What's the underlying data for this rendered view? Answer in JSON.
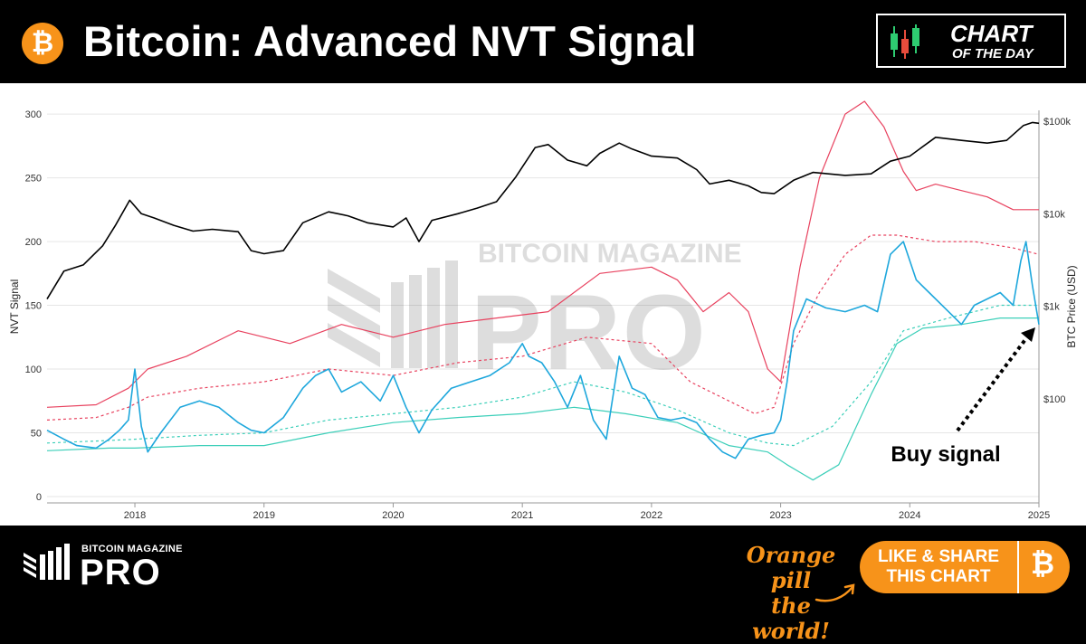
{
  "header": {
    "btc_symbol": "₿",
    "title": "Bitcoin: Advanced NVT Signal",
    "badge_line1": "CHART",
    "badge_line2": "OF THE DAY"
  },
  "watermark": {
    "line1": "BITCOIN MAGAZINE",
    "line2": "PRO"
  },
  "annotation": "Buy signal",
  "footer": {
    "brand_small": "BITCOIN MAGAZINE",
    "brand_big": "PRO",
    "slogan_line1": "Orange pill",
    "slogan_line2": "the world!",
    "share_line1": "LIKE & SHARE",
    "share_line2": "THIS CHART",
    "share_symbol": "₿"
  },
  "colors": {
    "brand_orange": "#f7931a",
    "nvt": "#1ea7dc",
    "price": "#000000",
    "upper_band": "#e8425f",
    "lower_band": "#3ccfb9"
  },
  "chart_data": {
    "type": "line",
    "ylabel": "NVT Signal",
    "y2label": "BTC Price (USD)",
    "ylim": [
      0,
      310
    ],
    "y_ticks": [
      0,
      50,
      100,
      150,
      200,
      250,
      300
    ],
    "y2_log": true,
    "y2_ticks": [
      100,
      1000,
      10000,
      100000
    ],
    "y2_tick_labels": [
      "$100",
      "$1k",
      "$10k",
      "$100k"
    ],
    "xlim": [
      2017.32,
      2025.0
    ],
    "x_ticks": [
      2018,
      2019,
      2020,
      2021,
      2022,
      2023,
      2024,
      2025
    ],
    "x_tick_labels": [
      "2018",
      "2019",
      "2020",
      "2021",
      "2022",
      "2023",
      "2024",
      "2025"
    ],
    "grid": true,
    "series": [
      {
        "axis": "right",
        "color": "#000000",
        "x": [
          2017.32,
          2017.45,
          2017.6,
          2017.75,
          2017.85,
          2017.96,
          2018.05,
          2018.15,
          2018.3,
          2018.45,
          2018.6,
          2018.8,
          2018.9,
          2019.0,
          2019.15,
          2019.3,
          2019.5,
          2019.65,
          2019.8,
          2020.0,
          2020.1,
          2020.2,
          2020.3,
          2020.5,
          2020.65,
          2020.8,
          2020.95,
          2021.0,
          2021.1,
          2021.2,
          2021.35,
          2021.5,
          2021.6,
          2021.75,
          2021.85,
          2022.0,
          2022.2,
          2022.35,
          2022.45,
          2022.6,
          2022.75,
          2022.85,
          2022.95,
          2023.1,
          2023.25,
          2023.5,
          2023.7,
          2023.85,
          2024.0,
          2024.2,
          2024.4,
          2024.6,
          2024.75,
          2024.88,
          2024.95,
          2025.0
        ],
        "y": [
          1200,
          2400,
          2800,
          4500,
          7500,
          14000,
          10000,
          9000,
          7500,
          6500,
          6800,
          6400,
          4000,
          3700,
          4000,
          8000,
          10500,
          9500,
          8000,
          7200,
          9000,
          5000,
          8500,
          10000,
          11500,
          13500,
          25000,
          32000,
          52000,
          56000,
          38000,
          33000,
          45000,
          58000,
          50000,
          42000,
          40000,
          30000,
          21000,
          23000,
          20000,
          17000,
          16500,
          23000,
          28000,
          26000,
          27000,
          37000,
          42000,
          67000,
          62000,
          58000,
          62000,
          90000,
          97000,
          95000
        ]
      },
      {
        "axis": "left",
        "color": "#1ea7dc",
        "x": [
          2017.32,
          2017.45,
          2017.55,
          2017.7,
          2017.8,
          2017.88,
          2017.95,
          2018.0,
          2018.05,
          2018.1,
          2018.2,
          2018.35,
          2018.5,
          2018.65,
          2018.8,
          2018.9,
          2019.0,
          2019.15,
          2019.3,
          2019.4,
          2019.5,
          2019.6,
          2019.75,
          2019.9,
          2020.0,
          2020.1,
          2020.2,
          2020.3,
          2020.45,
          2020.6,
          2020.75,
          2020.9,
          2021.0,
          2021.05,
          2021.15,
          2021.25,
          2021.35,
          2021.45,
          2021.55,
          2021.65,
          2021.75,
          2021.85,
          2021.95,
          2022.05,
          2022.15,
          2022.25,
          2022.35,
          2022.45,
          2022.55,
          2022.65,
          2022.75,
          2022.85,
          2022.95,
          2023.0,
          2023.05,
          2023.1,
          2023.2,
          2023.35,
          2023.5,
          2023.65,
          2023.75,
          2023.85,
          2023.95,
          2024.05,
          2024.15,
          2024.3,
          2024.4,
          2024.5,
          2024.6,
          2024.7,
          2024.8,
          2024.86,
          2024.9,
          2024.95,
          2025.0
        ],
        "y": [
          52,
          45,
          40,
          38,
          45,
          52,
          60,
          100,
          55,
          35,
          50,
          70,
          75,
          70,
          58,
          52,
          50,
          62,
          85,
          95,
          100,
          82,
          90,
          75,
          95,
          70,
          50,
          68,
          85,
          90,
          95,
          105,
          120,
          110,
          105,
          90,
          70,
          95,
          60,
          45,
          110,
          85,
          80,
          62,
          60,
          62,
          58,
          45,
          35,
          30,
          45,
          48,
          50,
          60,
          90,
          130,
          155,
          148,
          145,
          150,
          145,
          190,
          200,
          170,
          160,
          145,
          135,
          150,
          155,
          160,
          150,
          185,
          200,
          165,
          135
        ]
      },
      {
        "axis": "left",
        "color": "#e8425f",
        "dash": false,
        "x": [
          2017.32,
          2017.7,
          2017.95,
          2018.1,
          2018.4,
          2018.8,
          2019.2,
          2019.6,
          2020.0,
          2020.4,
          2020.8,
          2021.2,
          2021.6,
          2022.0,
          2022.2,
          2022.4,
          2022.6,
          2022.75,
          2022.9,
          2023.0,
          2023.15,
          2023.3,
          2023.5,
          2023.65,
          2023.8,
          2023.95,
          2024.05,
          2024.2,
          2024.4,
          2024.6,
          2024.8,
          2024.95,
          2025.0
        ],
        "y": [
          70,
          72,
          85,
          100,
          110,
          130,
          120,
          135,
          125,
          135,
          140,
          145,
          175,
          180,
          170,
          145,
          160,
          145,
          100,
          90,
          180,
          250,
          300,
          310,
          290,
          255,
          240,
          245,
          240,
          235,
          225,
          225,
          225
        ]
      },
      {
        "axis": "left",
        "color": "#e8425f",
        "dash": true,
        "x": [
          2017.32,
          2017.7,
          2017.95,
          2018.1,
          2018.5,
          2019.0,
          2019.5,
          2020.0,
          2020.5,
          2021.0,
          2021.5,
          2022.0,
          2022.3,
          2022.6,
          2022.8,
          2022.95,
          2023.1,
          2023.3,
          2023.5,
          2023.7,
          2023.9,
          2024.2,
          2024.5,
          2024.8,
          2025.0
        ],
        "y": [
          60,
          62,
          70,
          78,
          85,
          90,
          100,
          95,
          105,
          110,
          125,
          120,
          90,
          75,
          65,
          70,
          120,
          160,
          190,
          205,
          205,
          200,
          200,
          195,
          190
        ]
      },
      {
        "axis": "left",
        "color": "#3ccfb9",
        "dash": true,
        "x": [
          2017.32,
          2017.8,
          2018.0,
          2018.5,
          2019.0,
          2019.5,
          2020.0,
          2020.5,
          2021.0,
          2021.4,
          2021.8,
          2022.2,
          2022.6,
          2022.9,
          2023.1,
          2023.4,
          2023.7,
          2023.95,
          2024.3,
          2024.7,
          2025.0
        ],
        "y": [
          42,
          44,
          45,
          48,
          50,
          60,
          65,
          70,
          78,
          90,
          82,
          68,
          50,
          42,
          40,
          55,
          90,
          130,
          140,
          150,
          150
        ]
      },
      {
        "axis": "left",
        "color": "#3ccfb9",
        "dash": false,
        "x": [
          2017.32,
          2017.8,
          2018.0,
          2018.5,
          2019.0,
          2019.5,
          2020.0,
          2020.5,
          2021.0,
          2021.4,
          2021.8,
          2022.2,
          2022.6,
          2022.9,
          2023.05,
          2023.25,
          2023.45,
          2023.7,
          2023.9,
          2024.1,
          2024.4,
          2024.7,
          2025.0
        ],
        "y": [
          36,
          38,
          38,
          40,
          40,
          50,
          58,
          62,
          65,
          70,
          65,
          58,
          40,
          35,
          25,
          13,
          25,
          80,
          120,
          132,
          135,
          140,
          140
        ]
      }
    ]
  }
}
